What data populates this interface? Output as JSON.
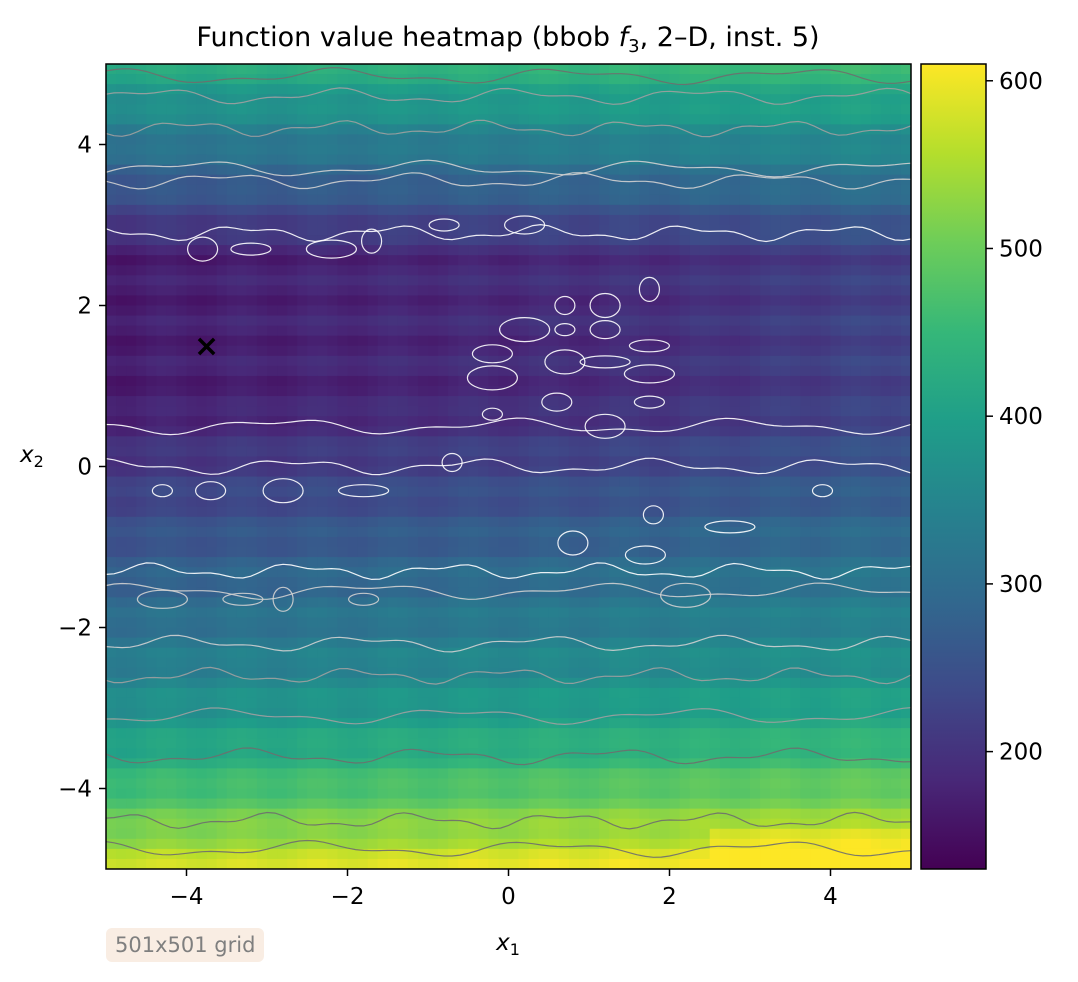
{
  "chart_data": {
    "type": "heatmap",
    "title_prefix": "Function value heatmap (bbob ",
    "title_func": "f",
    "title_sub": "3",
    "title_suffix": ", 2–D, inst. 5)",
    "xlabel": "x",
    "xlabel_sub": "1",
    "ylabel": "x",
    "ylabel_sub": "2",
    "xlim": [
      -5,
      5
    ],
    "ylim": [
      -5,
      5
    ],
    "xticks": [
      -4,
      -2,
      0,
      2,
      4
    ],
    "xtick_labels": [
      "−4",
      "−2",
      "0",
      "2",
      "4"
    ],
    "yticks": [
      -4,
      -2,
      0,
      2,
      4
    ],
    "ytick_labels": [
      "−4",
      "−2",
      "0",
      "2",
      "4"
    ],
    "colormap": "viridis",
    "colorbar_range": [
      130,
      610
    ],
    "colorbar_ticks": [
      200,
      300,
      400,
      500,
      600
    ],
    "colorbar_tick_labels": [
      "200",
      "300",
      "400",
      "500",
      "600"
    ],
    "optimum_marker": {
      "x": -3.75,
      "y": 1.5,
      "symbol": "×",
      "color": "#ffffff"
    },
    "contour_colors": [
      "#ffffff",
      "#d0d0d0",
      "#a0a0a0",
      "#6e6e6e"
    ],
    "grid": false
  },
  "badge": {
    "text": "501x501 grid"
  }
}
